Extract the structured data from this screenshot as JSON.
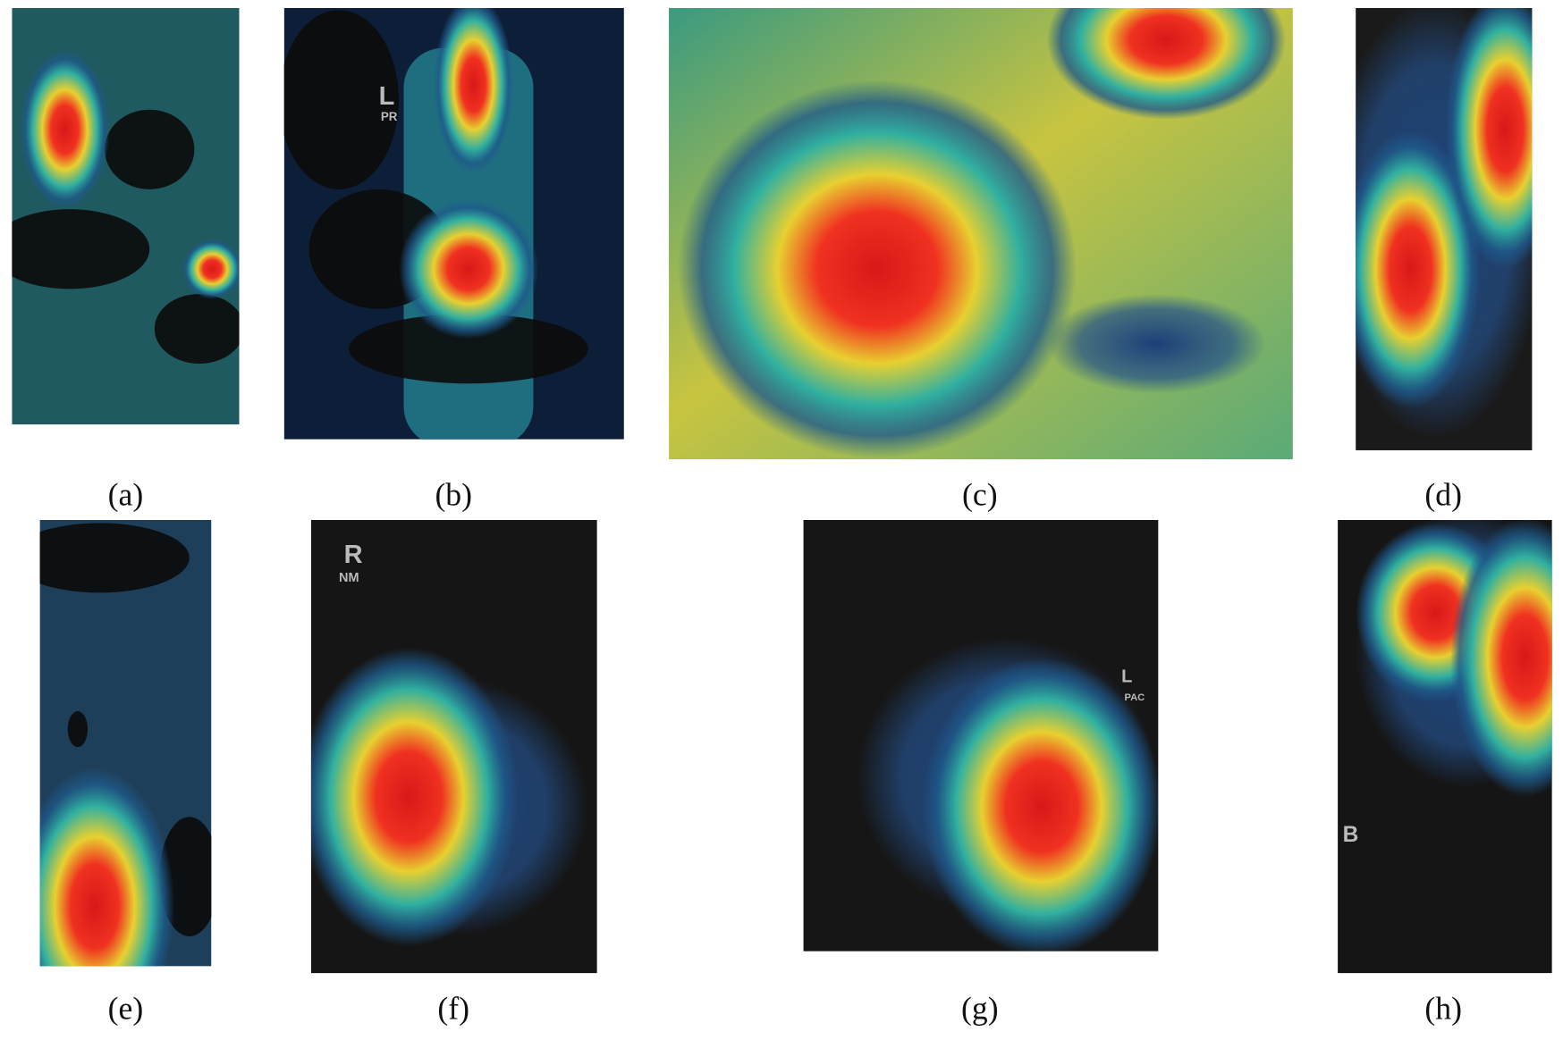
{
  "panels": [
    {
      "label": "(a)"
    },
    {
      "label": "(b)",
      "annotations": [
        "L",
        "PR"
      ]
    },
    {
      "label": "(c)"
    },
    {
      "label": "(d)"
    },
    {
      "label": "(e)"
    },
    {
      "label": "(f)",
      "annotations": [
        "R",
        "NM"
      ]
    },
    {
      "label": "(g)",
      "annotations": [
        "L",
        "PAC"
      ]
    },
    {
      "label": "(h)",
      "annotations": [
        "B"
      ]
    }
  ]
}
